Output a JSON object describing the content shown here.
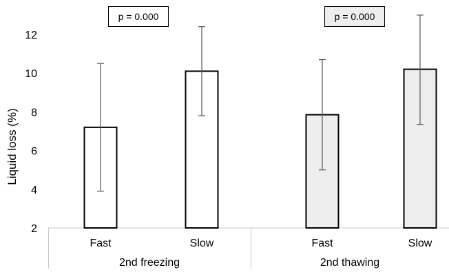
{
  "chart_data": {
    "type": "bar",
    "ylabel": "Liquid loss (%)",
    "ylim": [
      2,
      13
    ],
    "yticks": [
      2,
      4,
      6,
      8,
      10,
      12
    ],
    "grid": false,
    "groups": [
      {
        "name": "2nd freezing",
        "p_label": "p = 0.000",
        "fill": "#ffffff",
        "bars": [
          {
            "category": "Fast",
            "value": 7.2,
            "err_low": 3.9,
            "err_high": 10.5
          },
          {
            "category": "Slow",
            "value": 10.1,
            "err_low": 7.8,
            "err_high": 12.4
          }
        ]
      },
      {
        "name": "2nd thawing",
        "p_label": "p = 0.000",
        "fill": "#eeeeee",
        "bars": [
          {
            "category": "Fast",
            "value": 7.85,
            "err_low": 5.0,
            "err_high": 10.7
          },
          {
            "category": "Slow",
            "value": 10.2,
            "err_low": 7.35,
            "err_high": 13.0
          }
        ]
      }
    ]
  }
}
